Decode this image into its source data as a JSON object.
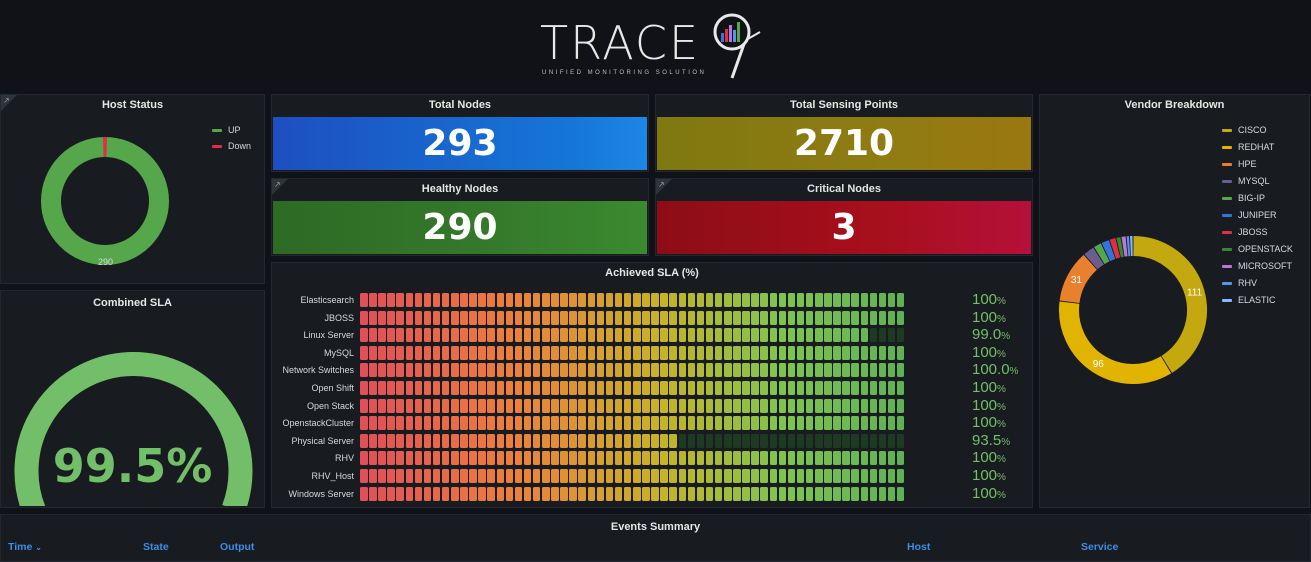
{
  "logo": {
    "word": "TRACE",
    "tagline": "UNIFIED MONITORING SOLUTION"
  },
  "host_status": {
    "title": "Host Status",
    "legend": [
      {
        "label": "UP",
        "color": "#56a64b"
      },
      {
        "label": "Down",
        "color": "#e02f44"
      }
    ],
    "up": 290,
    "down": 3,
    "center_label": "290"
  },
  "stats": {
    "total_nodes": {
      "title": "Total Nodes",
      "value": "293",
      "color": "#1f60c4"
    },
    "total_sensing": {
      "title": "Total Sensing Points",
      "value": "2710",
      "color": "#8a7b12"
    },
    "healthy_nodes": {
      "title": "Healthy Nodes",
      "value": "290",
      "color": "#37872d"
    },
    "critical_nodes": {
      "title": "Critical Nodes",
      "value": "3",
      "color": "#ad0317"
    }
  },
  "combined_sla": {
    "title": "Combined SLA",
    "value": "99.5%",
    "fraction": 0.995,
    "color": "#73bf69"
  },
  "sla_panel": {
    "title": "Achieved SLA (%)",
    "rows": [
      {
        "label": "Elasticsearch",
        "num": "100",
        "unit": "%",
        "fraction": 1.0
      },
      {
        "label": "JBOSS",
        "num": "100",
        "unit": "%",
        "fraction": 1.0
      },
      {
        "label": "Linux Server",
        "num": "99.0",
        "unit": "%",
        "fraction": 0.99
      },
      {
        "label": "MySQL",
        "num": "100",
        "unit": "%",
        "fraction": 1.0
      },
      {
        "label": "Network Switches",
        "num": "100.0",
        "unit": "%",
        "fraction": 1.0
      },
      {
        "label": "Open Shift",
        "num": "100",
        "unit": "%",
        "fraction": 1.0
      },
      {
        "label": "Open Stack",
        "num": "100",
        "unit": "%",
        "fraction": 1.0
      },
      {
        "label": "OpenstackCluster",
        "num": "100",
        "unit": "%",
        "fraction": 1.0
      },
      {
        "label": "Physical Server",
        "num": "93.5",
        "unit": "%",
        "fraction": 0.935
      },
      {
        "label": "RHV",
        "num": "100",
        "unit": "%",
        "fraction": 1.0
      },
      {
        "label": "RHV_Host",
        "num": "100",
        "unit": "%",
        "fraction": 1.0
      },
      {
        "label": "Windows Server",
        "num": "100",
        "unit": "%",
        "fraction": 1.0
      }
    ]
  },
  "vendor": {
    "title": "Vendor Breakdown",
    "legend": [
      {
        "label": "CISCO",
        "color": "#c4a80f"
      },
      {
        "label": "REDHAT",
        "color": "#e0b400"
      },
      {
        "label": "HPE",
        "color": "#e8802e"
      },
      {
        "label": "MYSQL",
        "color": "#6b5d8f"
      },
      {
        "label": "BIG-IP",
        "color": "#56a64b"
      },
      {
        "label": "JUNIPER",
        "color": "#3274d9"
      },
      {
        "label": "JBOSS",
        "color": "#e02f44"
      },
      {
        "label": "OPENSTACK",
        "color": "#37872d"
      },
      {
        "label": "MICROSOFT",
        "color": "#b877d9"
      },
      {
        "label": "RHV",
        "color": "#5794f2"
      },
      {
        "label": "ELASTIC",
        "color": "#8ab8ff"
      }
    ],
    "slices": [
      {
        "name": "CISCO",
        "value": 111,
        "label": "111"
      },
      {
        "name": "REDHAT",
        "value": 96,
        "label": "96"
      },
      {
        "name": "HPE",
        "value": 31,
        "label": "31"
      },
      {
        "name": "MYSQL",
        "value": 7
      },
      {
        "name": "BIG-IP",
        "value": 5
      },
      {
        "name": "JUNIPER",
        "value": 5
      },
      {
        "name": "JBOSS",
        "value": 4
      },
      {
        "name": "OPENSTACK",
        "value": 3
      },
      {
        "name": "MICROSOFT",
        "value": 3
      },
      {
        "name": "RHV",
        "value": 2
      },
      {
        "name": "ELASTIC",
        "value": 2
      }
    ]
  },
  "events": {
    "title": "Events Summary",
    "columns": {
      "time": "Time",
      "state": "State",
      "output": "Output",
      "host": "Host",
      "service": "Service"
    }
  }
}
